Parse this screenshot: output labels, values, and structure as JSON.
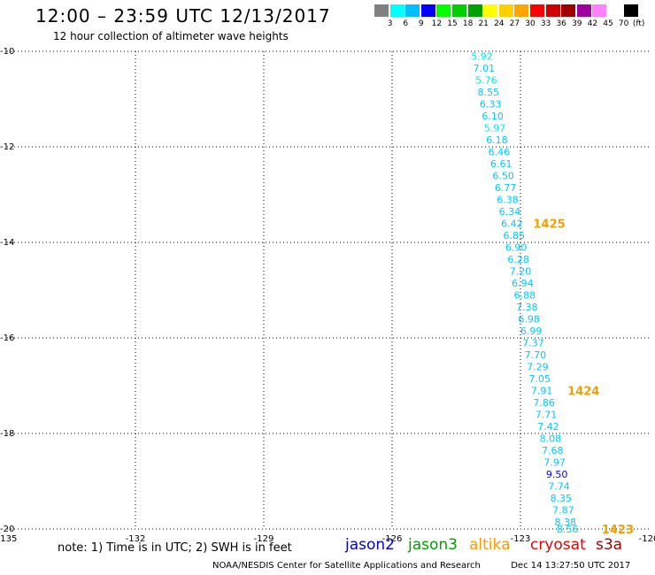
{
  "header": {
    "title": "12:00 – 23:59 UTC 12/13/2017",
    "subtitle": "12 hour collection of altimeter wave heights"
  },
  "colorbar": {
    "unit": "(ft)",
    "colors": [
      "#808080",
      "#00ffff",
      "#00bfff",
      "#0000ff",
      "#00ff00",
      "#00d000",
      "#00a000",
      "#ffff00",
      "#ffd000",
      "#ffa500",
      "#ff0000",
      "#d00000",
      "#a00000",
      "#a000a0",
      "#ff80ff",
      "#ffffff",
      "#000000"
    ],
    "labels": [
      "3",
      "6",
      "9",
      "12",
      "15",
      "18",
      "21",
      "24",
      "27",
      "30",
      "33",
      "36",
      "39",
      "42",
      "45",
      "70"
    ]
  },
  "chart_data": {
    "type": "scatter",
    "xlim": [
      -135,
      -120
    ],
    "ylim": [
      -20,
      -10
    ],
    "x_ticks": [
      "-135",
      "-132",
      "-129",
      "-126",
      "-123",
      "-120"
    ],
    "y_ticks": [
      "-10",
      "-12",
      "-14",
      "-16",
      "-18",
      "-20"
    ],
    "grid": true,
    "points": [
      {
        "lon": -123.9,
        "lat": -10.1,
        "label": "5.92",
        "color": "#00e8e8"
      },
      {
        "lon": -123.85,
        "lat": -10.35,
        "label": "7.01",
        "color": "#00c8ff"
      },
      {
        "lon": -123.8,
        "lat": -10.6,
        "label": "5.76",
        "color": "#00e8e8"
      },
      {
        "lon": -123.75,
        "lat": -10.85,
        "label": "8.55",
        "color": "#00c8ff"
      },
      {
        "lon": -123.7,
        "lat": -11.1,
        "label": "6.33",
        "color": "#00c8ff"
      },
      {
        "lon": -123.65,
        "lat": -11.35,
        "label": "6.10",
        "color": "#00c8ff"
      },
      {
        "lon": -123.6,
        "lat": -11.6,
        "label": "5.97",
        "color": "#00e8e8"
      },
      {
        "lon": -123.55,
        "lat": -11.85,
        "label": "6.18",
        "color": "#00c8ff"
      },
      {
        "lon": -123.5,
        "lat": -12.1,
        "label": "6.46",
        "color": "#00c8ff"
      },
      {
        "lon": -123.45,
        "lat": -12.35,
        "label": "6.61",
        "color": "#00c8ff"
      },
      {
        "lon": -123.4,
        "lat": -12.6,
        "label": "6.50",
        "color": "#00c8ff"
      },
      {
        "lon": -123.35,
        "lat": -12.85,
        "label": "6.77",
        "color": "#00c8ff"
      },
      {
        "lon": -123.3,
        "lat": -13.1,
        "label": "6.38",
        "color": "#00c8ff"
      },
      {
        "lon": -123.25,
        "lat": -13.35,
        "label": "6.34",
        "color": "#00c8ff"
      },
      {
        "lon": -123.2,
        "lat": -13.6,
        "label": "6.42",
        "color": "#00c8ff"
      },
      {
        "lon": -123.15,
        "lat": -13.85,
        "label": "6.85",
        "color": "#00c8ff"
      },
      {
        "lon": -123.1,
        "lat": -14.1,
        "label": "6.90",
        "color": "#00c8ff"
      },
      {
        "lon": -123.05,
        "lat": -14.35,
        "label": "6.28",
        "color": "#00c8ff"
      },
      {
        "lon": -123.0,
        "lat": -14.6,
        "label": "7.20",
        "color": "#00c8ff"
      },
      {
        "lon": -122.95,
        "lat": -14.85,
        "label": "6.94",
        "color": "#00c8ff"
      },
      {
        "lon": -122.9,
        "lat": -15.1,
        "label": "6.88",
        "color": "#00c8ff"
      },
      {
        "lon": -122.85,
        "lat": -15.35,
        "label": "7.38",
        "color": "#00c8ff"
      },
      {
        "lon": -122.8,
        "lat": -15.6,
        "label": "6.98",
        "color": "#00c8ff"
      },
      {
        "lon": -122.75,
        "lat": -15.85,
        "label": "6.99",
        "color": "#00c8ff"
      },
      {
        "lon": -122.7,
        "lat": -16.1,
        "label": "7.37",
        "color": "#00c8ff"
      },
      {
        "lon": -122.65,
        "lat": -16.35,
        "label": "7.70",
        "color": "#00c8ff"
      },
      {
        "lon": -122.6,
        "lat": -16.6,
        "label": "7.29",
        "color": "#00c8ff"
      },
      {
        "lon": -122.55,
        "lat": -16.85,
        "label": "7.05",
        "color": "#00c8ff"
      },
      {
        "lon": -122.5,
        "lat": -17.1,
        "label": "7.91",
        "color": "#00c8ff"
      },
      {
        "lon": -122.45,
        "lat": -17.35,
        "label": "7.86",
        "color": "#00c8ff"
      },
      {
        "lon": -122.4,
        "lat": -17.6,
        "label": "7.71",
        "color": "#00c8ff"
      },
      {
        "lon": -122.35,
        "lat": -17.85,
        "label": "7.42",
        "color": "#00c8ff"
      },
      {
        "lon": -122.3,
        "lat": -18.1,
        "label": "8.08",
        "color": "#00c8ff"
      },
      {
        "lon": -122.25,
        "lat": -18.35,
        "label": "7.68",
        "color": "#00c8ff"
      },
      {
        "lon": -122.2,
        "lat": -18.6,
        "label": "7.97",
        "color": "#00c8ff"
      },
      {
        "lon": -122.15,
        "lat": -18.85,
        "label": "9.50",
        "color": "#0000ff"
      },
      {
        "lon": -122.1,
        "lat": -19.1,
        "label": "7.74",
        "color": "#00c8ff"
      },
      {
        "lon": -122.05,
        "lat": -19.35,
        "label": "8.35",
        "color": "#00c8ff"
      },
      {
        "lon": -122.0,
        "lat": -19.6,
        "label": "7.87",
        "color": "#00c8ff"
      },
      {
        "lon": -121.95,
        "lat": -19.85,
        "label": "8.38",
        "color": "#00c8ff"
      },
      {
        "lon": -121.9,
        "lat": -20.0,
        "label": "8.56",
        "color": "#00c8ff"
      }
    ],
    "time_labels": [
      {
        "lon": -122.7,
        "lat": -13.6,
        "label": "1425",
        "color": "#f0a000"
      },
      {
        "lon": -121.9,
        "lat": -17.1,
        "label": "1424",
        "color": "#f0a000"
      },
      {
        "lon": -121.1,
        "lat": -20.0,
        "label": "1423",
        "color": "#f0a000"
      }
    ]
  },
  "note": "note: 1) Time is in UTC; 2) SWH is in feet",
  "satellites": [
    {
      "name": "jason2",
      "color": "#0000dd"
    },
    {
      "name": "jason3",
      "color": "#00a000"
    },
    {
      "name": "altika",
      "color": "#ff9900"
    },
    {
      "name": "cryosat",
      "color": "#ee0000"
    },
    {
      "name": "s3a",
      "color": "#aa0000"
    }
  ],
  "footer": {
    "center": "NOAA/NESDIS Center for Satellite Applications and Research",
    "timestamp": "Dec 14 13:27:50 UTC 2017"
  }
}
